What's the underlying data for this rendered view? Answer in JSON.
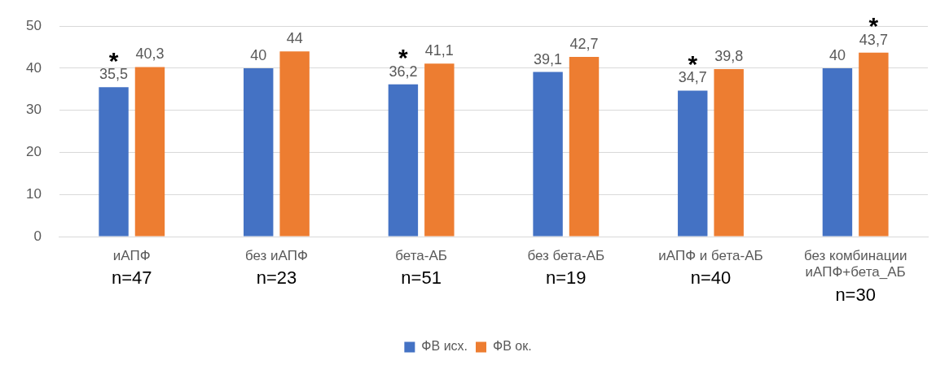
{
  "chart_data": {
    "type": "bar",
    "categories": [
      "иАПФ",
      "без иАПФ",
      "бета-АБ",
      "без бета-АБ",
      "иАПФ и бета-АБ",
      "без комбинации\nиАПФ+бета_АБ"
    ],
    "series": [
      {
        "name": "ФВ исх.",
        "color": "#4472c4",
        "values": [
          35.5,
          40,
          36.2,
          39.1,
          34.7,
          40
        ],
        "value_labels": [
          "35,5",
          "40",
          "36,2",
          "39,1",
          "34,7",
          "40"
        ]
      },
      {
        "name": "ФВ ок.",
        "color": "#ed7d31",
        "values": [
          40.3,
          44,
          41.1,
          42.7,
          39.8,
          43.7
        ],
        "value_labels": [
          "40,3",
          "44",
          "41,1",
          "42,7",
          "39,8",
          "43,7"
        ]
      }
    ],
    "ylim": [
      0,
      50
    ],
    "yticks": [
      0,
      10,
      20,
      30,
      40,
      50
    ],
    "grid": "y",
    "legend": "bottom",
    "annotations": [
      {
        "text": "*",
        "x": "иАПФ",
        "y": 35.5
      },
      {
        "text": "*",
        "x": "бета-АБ",
        "y": 36.2
      },
      {
        "text": "*",
        "x": "иАПФ и бета-АБ",
        "y": 34.7
      },
      {
        "text": "*",
        "x": "без комбинации\nиАПФ+бета_АБ",
        "y": 43.7
      },
      "n=47",
      "n=23",
      "n=51",
      "n=19",
      "n=40",
      "n=30"
    ]
  }
}
